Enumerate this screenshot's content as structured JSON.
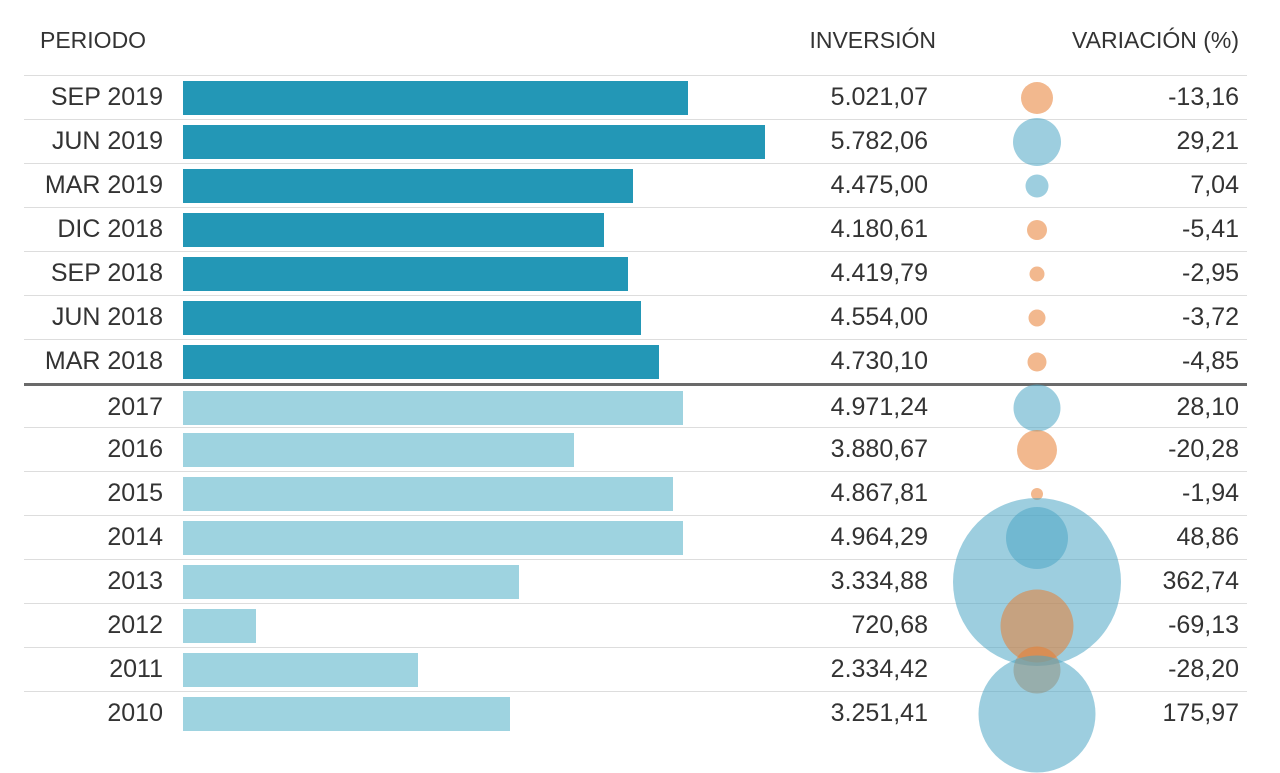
{
  "table": {
    "headers": {
      "period": "PERIODO",
      "investment": "INVERSIÓN",
      "variation": "VARIACIÓN (%)"
    },
    "rows": [
      {
        "period": "SEP 2019",
        "investment": "5.021,07",
        "investment_value": 5021.07,
        "variation": "-13,16",
        "variation_value": -13.16,
        "section": "quarterly"
      },
      {
        "period": "JUN 2019",
        "investment": "5.782,06",
        "investment_value": 5782.06,
        "variation": "29,21",
        "variation_value": 29.21,
        "section": "quarterly"
      },
      {
        "period": "MAR 2019",
        "investment": "4.475,00",
        "investment_value": 4475.0,
        "variation": "7,04",
        "variation_value": 7.04,
        "section": "quarterly"
      },
      {
        "period": "DIC 2018",
        "investment": "4.180,61",
        "investment_value": 4180.61,
        "variation": "-5,41",
        "variation_value": -5.41,
        "section": "quarterly"
      },
      {
        "period": "SEP 2018",
        "investment": "4.419,79",
        "investment_value": 4419.79,
        "variation": "-2,95",
        "variation_value": -2.95,
        "section": "quarterly"
      },
      {
        "period": "JUN 2018",
        "investment": "4.554,00",
        "investment_value": 4554.0,
        "variation": "-3,72",
        "variation_value": -3.72,
        "section": "quarterly"
      },
      {
        "period": "MAR 2018",
        "investment": "4.730,10",
        "investment_value": 4730.1,
        "variation": "-4,85",
        "variation_value": -4.85,
        "section": "quarterly"
      },
      {
        "period": "2017",
        "investment": "4.971,24",
        "investment_value": 4971.24,
        "variation": "28,10",
        "variation_value": 28.1,
        "section": "yearly"
      },
      {
        "period": "2016",
        "investment": "3.880,67",
        "investment_value": 3880.67,
        "variation": "-20,28",
        "variation_value": -20.28,
        "section": "yearly"
      },
      {
        "period": "2015",
        "investment": "4.867,81",
        "investment_value": 4867.81,
        "variation": "-1,94",
        "variation_value": -1.94,
        "section": "yearly"
      },
      {
        "period": "2014",
        "investment": "4.964,29",
        "investment_value": 4964.29,
        "variation": "48,86",
        "variation_value": 48.86,
        "section": "yearly"
      },
      {
        "period": "2013",
        "investment": "3.334,88",
        "investment_value": 3334.88,
        "variation": "362,74",
        "variation_value": 362.74,
        "section": "yearly"
      },
      {
        "period": "2012",
        "investment": "720,68",
        "investment_value": 720.68,
        "variation": "-69,13",
        "variation_value": -69.13,
        "section": "yearly"
      },
      {
        "period": "2011",
        "investment": "2.334,42",
        "investment_value": 2334.42,
        "variation": "-28,20",
        "variation_value": -28.2,
        "section": "yearly"
      },
      {
        "period": "2010",
        "investment": "3.251,41",
        "investment_value": 3251.41,
        "variation": "175,97",
        "variation_value": 175.97,
        "section": "yearly"
      }
    ]
  },
  "colors": {
    "bar_quarterly": "#2397b6",
    "bar_yearly": "#9ed3e0",
    "bubble_positive": "rgba(77,166,196,0.55)",
    "bubble_negative": "rgba(232,125,50,0.55)",
    "separator": "#dddddd",
    "section_divider": "#6a6a6a",
    "text": "#333333"
  },
  "chart_data": {
    "type": "bar",
    "title": "",
    "xlabel": "INVERSIÓN",
    "ylabel": "PERIODO",
    "orientation": "horizontal",
    "grid": false,
    "legend_position": "none",
    "categories": [
      "SEP 2019",
      "JUN 2019",
      "MAR 2019",
      "DIC 2018",
      "SEP 2018",
      "JUN 2018",
      "MAR 2018",
      "2017",
      "2016",
      "2015",
      "2014",
      "2013",
      "2012",
      "2011",
      "2010"
    ],
    "series": [
      {
        "name": "Inversión",
        "encoding": "bar-length",
        "values": [
          5021.07,
          5782.06,
          4475.0,
          4180.61,
          4419.79,
          4554.0,
          4730.1,
          4971.24,
          3880.67,
          4867.81,
          4964.29,
          3334.88,
          720.68,
          2334.42,
          3251.41
        ]
      },
      {
        "name": "Variación (%)",
        "encoding": "bubble-area",
        "values": [
          -13.16,
          29.21,
          7.04,
          -5.41,
          -2.95,
          -3.72,
          -4.85,
          28.1,
          -20.28,
          -1.94,
          48.86,
          362.74,
          -69.13,
          -28.2,
          175.97
        ]
      }
    ],
    "xlim": [
      0,
      5782.06
    ],
    "annotations": "bubble color: blue = positive variation, orange = negative variation; dark divider separates quarterly (2018-2019) from yearly (2010-2017) rows"
  }
}
